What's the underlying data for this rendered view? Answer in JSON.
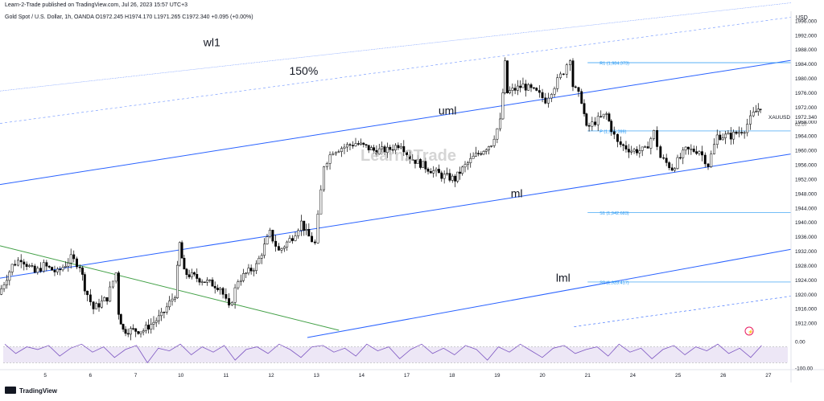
{
  "header": {
    "published_line": "Learn-2-Trade published on TradingView.com, Jul 26, 2023 15:57 UTC+3",
    "symbol_line": "Gold Spot / U.S. Dollar, 1h, OANDA O1972.245 H1974.170 L1971.265 C1972.340 +0.095 (+0.00%)"
  },
  "watermark": "Learn2Trade",
  "footer": {
    "brand": "TradingView"
  },
  "price_axis": {
    "currency": "USD",
    "current_symbol": "XAUUSD",
    "current_price": "1972.340",
    "countdown": "02:07"
  },
  "colors": {
    "candle": "#000000",
    "channel": "#2962ff",
    "channel_outer": "#2962ff",
    "trendline": "#43a047",
    "pivot": "#2196f3",
    "rsi_line": "#7e57c2",
    "rsi_band": "#ede7f6",
    "current_price_bg": "#ffffff"
  },
  "chart_data": {
    "type": "candlestick",
    "title": "Gold Spot / U.S. Dollar, 1h, OANDA",
    "timeframe": "1h",
    "ohlc": {
      "open": 1972.245,
      "high": 1974.17,
      "low": 1971.265,
      "close": 1972.34,
      "change": 0.095,
      "change_pct": 0.0
    },
    "ylim": [
      1908,
      2000
    ],
    "y_ticks": [
      1912,
      1916,
      1920,
      1924,
      1928,
      1932,
      1936,
      1940,
      1944,
      1948,
      1952,
      1956,
      1960,
      1964,
      1968,
      1972,
      1976,
      1980,
      1984,
      1988,
      1992,
      1996
    ],
    "y_tick_labels": [
      "1912.000",
      "1916.000",
      "1920.000",
      "1924.000",
      "1928.000",
      "1932.000",
      "1936.000",
      "1940.000",
      "1944.000",
      "1948.000",
      "1952.000",
      "1956.000",
      "1960.000",
      "1964.000",
      "1968.000",
      "1972.000",
      "1976.000",
      "1980.000",
      "1984.000",
      "1988.000",
      "1992.000",
      "1996.000"
    ],
    "x_ticks": [
      {
        "label": "5",
        "x": 5
      },
      {
        "label": "6",
        "x": 6
      },
      {
        "label": "7",
        "x": 7
      },
      {
        "label": "10",
        "x": 8
      },
      {
        "label": "11",
        "x": 9
      },
      {
        "label": "12",
        "x": 10
      },
      {
        "label": "13",
        "x": 11
      },
      {
        "label": "14",
        "x": 12
      },
      {
        "label": "17",
        "x": 13
      },
      {
        "label": "18",
        "x": 14
      },
      {
        "label": "19",
        "x": 15
      },
      {
        "label": "20",
        "x": 16
      },
      {
        "label": "21",
        "x": 17
      },
      {
        "label": "24",
        "x": 18
      },
      {
        "label": "25",
        "x": 19
      },
      {
        "label": "26",
        "x": 20
      },
      {
        "label": "27",
        "x": 21
      }
    ],
    "xlim": [
      4.0,
      21.5
    ],
    "candle_path": [
      [
        4.0,
        1920
      ],
      [
        4.3,
        1928
      ],
      [
        4.5,
        1930
      ],
      [
        4.8,
        1926
      ],
      [
        5.0,
        1928
      ],
      [
        5.3,
        1926
      ],
      [
        5.6,
        1930
      ],
      [
        5.8,
        1928
      ],
      [
        5.9,
        1922
      ],
      [
        6.1,
        1916
      ],
      [
        6.4,
        1919
      ],
      [
        6.6,
        1926
      ],
      [
        6.65,
        1915
      ],
      [
        6.75,
        1910
      ],
      [
        7.2,
        1910
      ],
      [
        7.6,
        1914
      ],
      [
        7.9,
        1920
      ],
      [
        8.0,
        1934
      ],
      [
        8.1,
        1926
      ],
      [
        8.5,
        1924
      ],
      [
        8.9,
        1922
      ],
      [
        9.1,
        1916
      ],
      [
        9.3,
        1924
      ],
      [
        9.7,
        1928
      ],
      [
        10.0,
        1937
      ],
      [
        10.2,
        1932
      ],
      [
        10.5,
        1936
      ],
      [
        10.7,
        1940
      ],
      [
        10.8,
        1937
      ],
      [
        11.0,
        1934
      ],
      [
        11.2,
        1956
      ],
      [
        11.4,
        1960
      ],
      [
        11.9,
        1962
      ],
      [
        12.3,
        1960
      ],
      [
        12.6,
        1960
      ],
      [
        12.9,
        1962
      ],
      [
        13.1,
        1958
      ],
      [
        13.5,
        1955
      ],
      [
        13.8,
        1953
      ],
      [
        14.1,
        1952
      ],
      [
        14.2,
        1954
      ],
      [
        14.5,
        1958
      ],
      [
        14.9,
        1962
      ],
      [
        15.1,
        1968
      ],
      [
        15.2,
        1984
      ],
      [
        15.25,
        1976
      ],
      [
        15.6,
        1978
      ],
      [
        15.9,
        1976
      ],
      [
        16.1,
        1974
      ],
      [
        16.3,
        1978
      ],
      [
        16.5,
        1982
      ],
      [
        16.65,
        1986
      ],
      [
        16.7,
        1978
      ],
      [
        16.9,
        1974
      ],
      [
        17.0,
        1966
      ],
      [
        17.2,
        1968
      ],
      [
        17.45,
        1970
      ],
      [
        17.55,
        1966
      ],
      [
        17.7,
        1962
      ],
      [
        18.0,
        1960
      ],
      [
        18.3,
        1960
      ],
      [
        18.5,
        1965
      ],
      [
        18.65,
        1958
      ],
      [
        18.9,
        1955
      ],
      [
        19.2,
        1960
      ],
      [
        19.5,
        1960
      ],
      [
        19.7,
        1956
      ],
      [
        19.9,
        1964
      ],
      [
        20.2,
        1964
      ],
      [
        20.5,
        1966
      ],
      [
        20.7,
        1970
      ],
      [
        20.85,
        1972.34
      ]
    ],
    "drawings": {
      "channel_lines": [
        {
          "label": "wl1",
          "from": [
            4.0,
            1976.5
          ],
          "to": [
            21.5,
            2001
          ]
        },
        {
          "label": "150%",
          "from": [
            4.0,
            1967.5
          ],
          "to": [
            21.5,
            1997
          ]
        },
        {
          "label": "uml",
          "from": [
            4.0,
            1950.5
          ],
          "to": [
            21.5,
            1985
          ]
        },
        {
          "label": "ml",
          "from": [
            4.0,
            1924.5
          ],
          "to": [
            21.5,
            1959
          ]
        },
        {
          "label": "lml",
          "from": [
            10.8,
            1908
          ],
          "to": [
            21.5,
            1932.5
          ]
        }
      ],
      "lower_dashed": {
        "from": [
          16.7,
          1911
        ],
        "to": [
          21.5,
          1919.5
        ]
      },
      "trendline": {
        "from": [
          4.0,
          1933.5
        ],
        "to": [
          11.5,
          1910
        ]
      },
      "pivots": [
        {
          "label": "R1",
          "text": "R1 (1,984.373)",
          "value": 1984.373,
          "from_x": 17.0
        },
        {
          "label": "P",
          "text": "P (1,965.399)",
          "value": 1965.399,
          "from_x": 17.0
        },
        {
          "label": "S1",
          "text": "S1 (1,942.683)",
          "value": 1942.683,
          "from_x": 17.0
        },
        {
          "label": "S2",
          "text": "S2 (1,923.417)",
          "value": 1923.417,
          "from_x": 17.0
        }
      ],
      "channel_text": [
        {
          "text": "wl1",
          "at": [
            8.5,
            1989
          ]
        },
        {
          "text": "150%",
          "at": [
            10.4,
            1981
          ]
        },
        {
          "text": "uml",
          "at": [
            13.7,
            1970
          ]
        },
        {
          "text": "ml",
          "at": [
            15.3,
            1947
          ]
        },
        {
          "text": "lml",
          "at": [
            16.3,
            1923.5
          ]
        }
      ]
    },
    "rsi": {
      "ylim": [
        -100,
        0
      ],
      "ticks": [
        "0.00",
        "-100.00"
      ],
      "band": [
        -20,
        -80
      ],
      "values": [
        -10,
        -45,
        -20,
        -30,
        -15,
        -55,
        -25,
        -10,
        -40,
        -20,
        -60,
        -30,
        -15,
        -80,
        -25,
        -35,
        -10,
        -50,
        -20,
        -40,
        -15,
        -70,
        -30,
        -20,
        -45,
        -10,
        -30,
        -60,
        -20,
        -15,
        -40,
        -25,
        -55,
        -10,
        -35,
        -20,
        -65,
        -30,
        -10,
        -45,
        -25,
        -50,
        -15,
        -30,
        -70,
        -20,
        -40,
        -10,
        -35,
        -60,
        -25,
        -15,
        -45,
        -30,
        -20,
        -55,
        -10,
        -40,
        -25,
        -65,
        -30,
        -15,
        -50,
        -20,
        -35,
        -10,
        -45,
        -25,
        -60,
        -15
      ]
    }
  }
}
